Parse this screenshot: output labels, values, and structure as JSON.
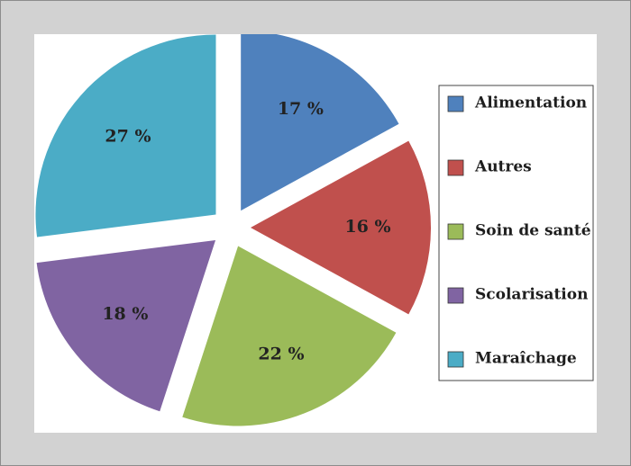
{
  "chart_data": {
    "type": "pie",
    "title": "",
    "exploded": true,
    "legend_placement": "right",
    "categories": [
      "Alimentation",
      "Autres",
      "Soin de santé",
      "Scolarisation",
      "Maraîchage"
    ],
    "values": [
      17,
      16,
      22,
      18,
      27
    ],
    "value_labels": [
      "17 %",
      "16 %",
      "22 %",
      "18 %",
      "27 %"
    ],
    "colors": [
      "#4f81bd",
      "#c0504d",
      "#9bbb59",
      "#8064a2",
      "#4bacc6"
    ]
  }
}
